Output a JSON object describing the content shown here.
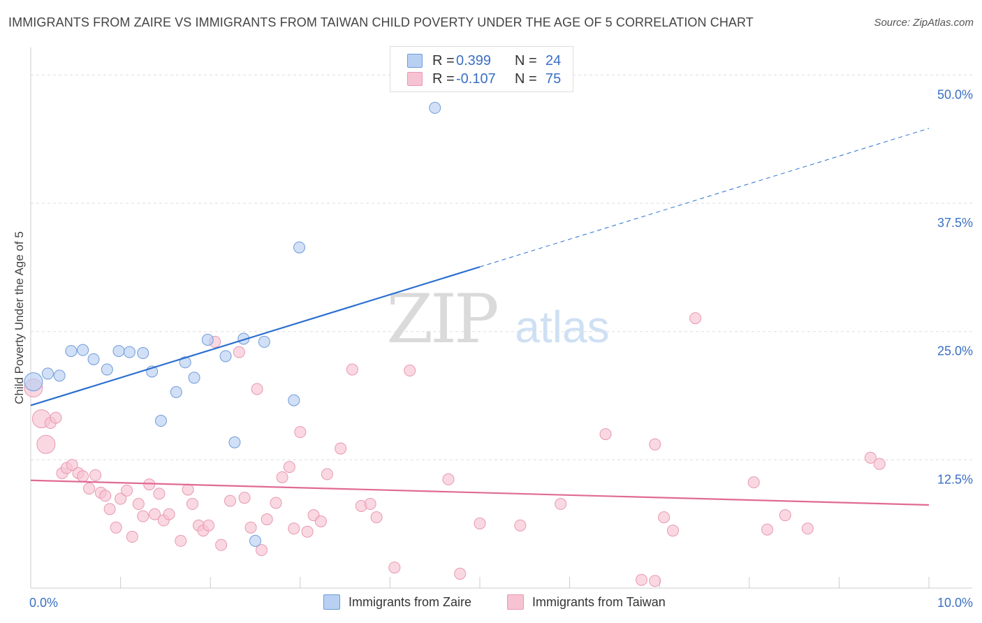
{
  "title": "IMMIGRANTS FROM ZAIRE VS IMMIGRANTS FROM TAIWAN CHILD POVERTY UNDER THE AGE OF 5 CORRELATION CHART",
  "source": "Source: ZipAtlas.com",
  "legend_top": {
    "zaire": {
      "r_label": "R =",
      "r_value": "0.399",
      "n_label": "N =",
      "n_value": "24"
    },
    "taiwan": {
      "r_label": "R =",
      "r_value": "-0.107",
      "n_label": "N =",
      "n_value": "75"
    }
  },
  "legend_bottom": {
    "zaire": "Immigrants from Zaire",
    "taiwan": "Immigrants from Taiwan"
  },
  "colors": {
    "zaire_fill": "#b8d0f2",
    "zaire_stroke": "#6f9bd8",
    "zaire_line": "#2b6fd0",
    "taiwan_fill": "#f7c3d3",
    "taiwan_stroke": "#e898b2",
    "taiwan_line": "#e06a94",
    "grid": "#dddddd",
    "tick_label": "#3a6fc4",
    "watermark": "#d9d9d9"
  },
  "chart_data": {
    "type": "scatter",
    "title": "IMMIGRANTS FROM ZAIRE VS IMMIGRANTS FROM TAIWAN CHILD POVERTY UNDER THE AGE OF 5 CORRELATION CHART",
    "xlabel": "",
    "ylabel": "Child Poverty Under the Age of 5",
    "xlim": [
      0,
      10
    ],
    "ylim": [
      0,
      52
    ],
    "x_tick_labels": [
      "0.0%",
      "10.0%"
    ],
    "y_ticks": [
      12.5,
      25.0,
      37.5,
      50.0
    ],
    "y_tick_labels": [
      "12.5%",
      "25.0%",
      "37.5%",
      "50.0%"
    ],
    "watermark": {
      "zip": "ZIP",
      "atlas": "atlas"
    },
    "series": [
      {
        "name": "Immigrants from Zaire",
        "r": 0.399,
        "n": 24,
        "trend": {
          "x0": 0.0,
          "y0": 17.8,
          "x1": 5.0,
          "y1": 31.3,
          "dashed_to_x": 10.0,
          "dashed_to_y": 44.8
        },
        "points": [
          {
            "x": 0.03,
            "y": 20.1,
            "big": true
          },
          {
            "x": 0.19,
            "y": 20.9
          },
          {
            "x": 0.32,
            "y": 20.7
          },
          {
            "x": 0.45,
            "y": 23.1
          },
          {
            "x": 0.58,
            "y": 23.2
          },
          {
            "x": 0.7,
            "y": 22.3
          },
          {
            "x": 0.85,
            "y": 21.3
          },
          {
            "x": 0.98,
            "y": 23.1
          },
          {
            "x": 1.1,
            "y": 23.0
          },
          {
            "x": 1.25,
            "y": 22.9
          },
          {
            "x": 1.35,
            "y": 21.1
          },
          {
            "x": 1.45,
            "y": 16.3
          },
          {
            "x": 1.62,
            "y": 19.1
          },
          {
            "x": 1.72,
            "y": 22.0
          },
          {
            "x": 1.82,
            "y": 20.5
          },
          {
            "x": 1.97,
            "y": 24.2
          },
          {
            "x": 2.17,
            "y": 22.6
          },
          {
            "x": 2.27,
            "y": 14.2
          },
          {
            "x": 2.37,
            "y": 24.3
          },
          {
            "x": 2.5,
            "y": 4.6
          },
          {
            "x": 2.6,
            "y": 24.0
          },
          {
            "x": 2.93,
            "y": 18.3
          },
          {
            "x": 2.99,
            "y": 33.2
          },
          {
            "x": 4.5,
            "y": 46.8
          }
        ]
      },
      {
        "name": "Immigrants from Taiwan",
        "r": -0.107,
        "n": 75,
        "trend": {
          "x0": 0.0,
          "y0": 10.5,
          "x1": 10.0,
          "y1": 8.1
        },
        "points": [
          {
            "x": 0.03,
            "y": 19.5,
            "big": true
          },
          {
            "x": 0.12,
            "y": 16.5,
            "big": true
          },
          {
            "x": 0.17,
            "y": 14.0,
            "big": true
          },
          {
            "x": 0.22,
            "y": 16.1
          },
          {
            "x": 0.28,
            "y": 16.6
          },
          {
            "x": 0.35,
            "y": 11.2
          },
          {
            "x": 0.4,
            "y": 11.7
          },
          {
            "x": 0.46,
            "y": 12.0
          },
          {
            "x": 0.53,
            "y": 11.2
          },
          {
            "x": 0.58,
            "y": 10.9
          },
          {
            "x": 0.65,
            "y": 9.7
          },
          {
            "x": 0.72,
            "y": 11.0
          },
          {
            "x": 0.78,
            "y": 9.3
          },
          {
            "x": 0.83,
            "y": 9.0
          },
          {
            "x": 0.88,
            "y": 7.7
          },
          {
            "x": 0.95,
            "y": 5.9
          },
          {
            "x": 1.0,
            "y": 8.7
          },
          {
            "x": 1.07,
            "y": 9.5
          },
          {
            "x": 1.13,
            "y": 5.0
          },
          {
            "x": 1.2,
            "y": 8.2
          },
          {
            "x": 1.25,
            "y": 7.0
          },
          {
            "x": 1.32,
            "y": 10.1
          },
          {
            "x": 1.38,
            "y": 7.2
          },
          {
            "x": 1.43,
            "y": 9.2
          },
          {
            "x": 1.48,
            "y": 6.6
          },
          {
            "x": 1.54,
            "y": 7.2
          },
          {
            "x": 1.67,
            "y": 4.6
          },
          {
            "x": 1.75,
            "y": 9.6
          },
          {
            "x": 1.8,
            "y": 8.2
          },
          {
            "x": 1.87,
            "y": 6.1
          },
          {
            "x": 1.92,
            "y": 5.6
          },
          {
            "x": 1.98,
            "y": 6.1
          },
          {
            "x": 2.05,
            "y": 24.0
          },
          {
            "x": 2.12,
            "y": 4.2
          },
          {
            "x": 2.22,
            "y": 8.5
          },
          {
            "x": 2.32,
            "y": 23.0
          },
          {
            "x": 2.38,
            "y": 8.8
          },
          {
            "x": 2.45,
            "y": 5.9
          },
          {
            "x": 2.52,
            "y": 19.4
          },
          {
            "x": 2.57,
            "y": 3.7
          },
          {
            "x": 2.63,
            "y": 6.7
          },
          {
            "x": 2.73,
            "y": 8.3
          },
          {
            "x": 2.8,
            "y": 10.8
          },
          {
            "x": 2.88,
            "y": 11.8
          },
          {
            "x": 2.93,
            "y": 5.8
          },
          {
            "x": 3.0,
            "y": 15.2
          },
          {
            "x": 3.08,
            "y": 5.5
          },
          {
            "x": 3.15,
            "y": 7.1
          },
          {
            "x": 3.23,
            "y": 6.5
          },
          {
            "x": 3.3,
            "y": 11.1
          },
          {
            "x": 3.45,
            "y": 13.6
          },
          {
            "x": 3.58,
            "y": 21.3
          },
          {
            "x": 3.68,
            "y": 8.0
          },
          {
            "x": 3.78,
            "y": 8.2
          },
          {
            "x": 3.85,
            "y": 6.9
          },
          {
            "x": 4.05,
            "y": 2.0
          },
          {
            "x": 4.22,
            "y": 21.2
          },
          {
            "x": 4.65,
            "y": 10.6
          },
          {
            "x": 4.78,
            "y": 1.4
          },
          {
            "x": 5.0,
            "y": 6.3
          },
          {
            "x": 5.45,
            "y": 6.1
          },
          {
            "x": 5.9,
            "y": 8.2
          },
          {
            "x": 6.4,
            "y": 15.0
          },
          {
            "x": 6.8,
            "y": 0.8
          },
          {
            "x": 6.95,
            "y": 0.7
          },
          {
            "x": 6.95,
            "y": 14.0
          },
          {
            "x": 7.05,
            "y": 6.9
          },
          {
            "x": 7.15,
            "y": 5.6
          },
          {
            "x": 7.4,
            "y": 26.3
          },
          {
            "x": 8.05,
            "y": 10.3
          },
          {
            "x": 8.2,
            "y": 5.7
          },
          {
            "x": 8.4,
            "y": 7.1
          },
          {
            "x": 8.65,
            "y": 5.8
          },
          {
            "x": 9.35,
            "y": 12.7
          },
          {
            "x": 9.45,
            "y": 12.1
          }
        ]
      }
    ]
  }
}
